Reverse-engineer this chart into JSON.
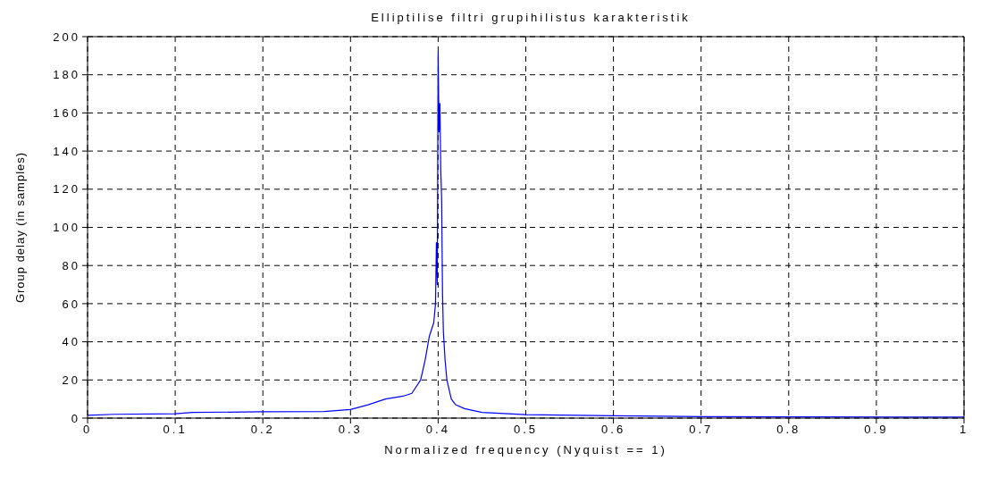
{
  "chart_data": {
    "type": "line",
    "title": "Elliptilise filtri grupihilistus karakteristik",
    "xlabel": "Normalized frequency (Nyquist == 1)",
    "ylabel": "Group delay (in samples)",
    "x": [
      0,
      0.03,
      0.1,
      0.12,
      0.2,
      0.27,
      0.3,
      0.32,
      0.34,
      0.36,
      0.37,
      0.38,
      0.385,
      0.39,
      0.395,
      0.397,
      0.398,
      0.399,
      0.4,
      0.401,
      0.402,
      0.403,
      0.404,
      0.405,
      0.406,
      0.408,
      0.41,
      0.415,
      0.42,
      0.43,
      0.45,
      0.5,
      0.6,
      0.7,
      0.8,
      1
    ],
    "series": [
      {
        "color": "#0000ff",
        "values": [
          1.5,
          2,
          2.3,
          3,
          3.3,
          3.5,
          4.5,
          7,
          10,
          11.5,
          13,
          20,
          30,
          43,
          50,
          60,
          92,
          70,
          192,
          150,
          165,
          130,
          115,
          65,
          45,
          30,
          20,
          10,
          7,
          5,
          3,
          1.8,
          1.2,
          0.8,
          0.6,
          0.5
        ]
      }
    ],
    "xlim": [
      0,
      1
    ],
    "xticks": [
      0,
      0.1,
      0.2,
      0.3,
      0.4,
      0.5,
      0.6,
      0.7,
      0.8,
      0.9,
      1
    ],
    "ylim": [
      0,
      200
    ],
    "yticks": [
      0,
      20,
      40,
      60,
      80,
      100,
      120,
      140,
      160,
      180,
      200
    ],
    "grid": true,
    "legend": false,
    "marker": "none",
    "line_style": "solid"
  }
}
